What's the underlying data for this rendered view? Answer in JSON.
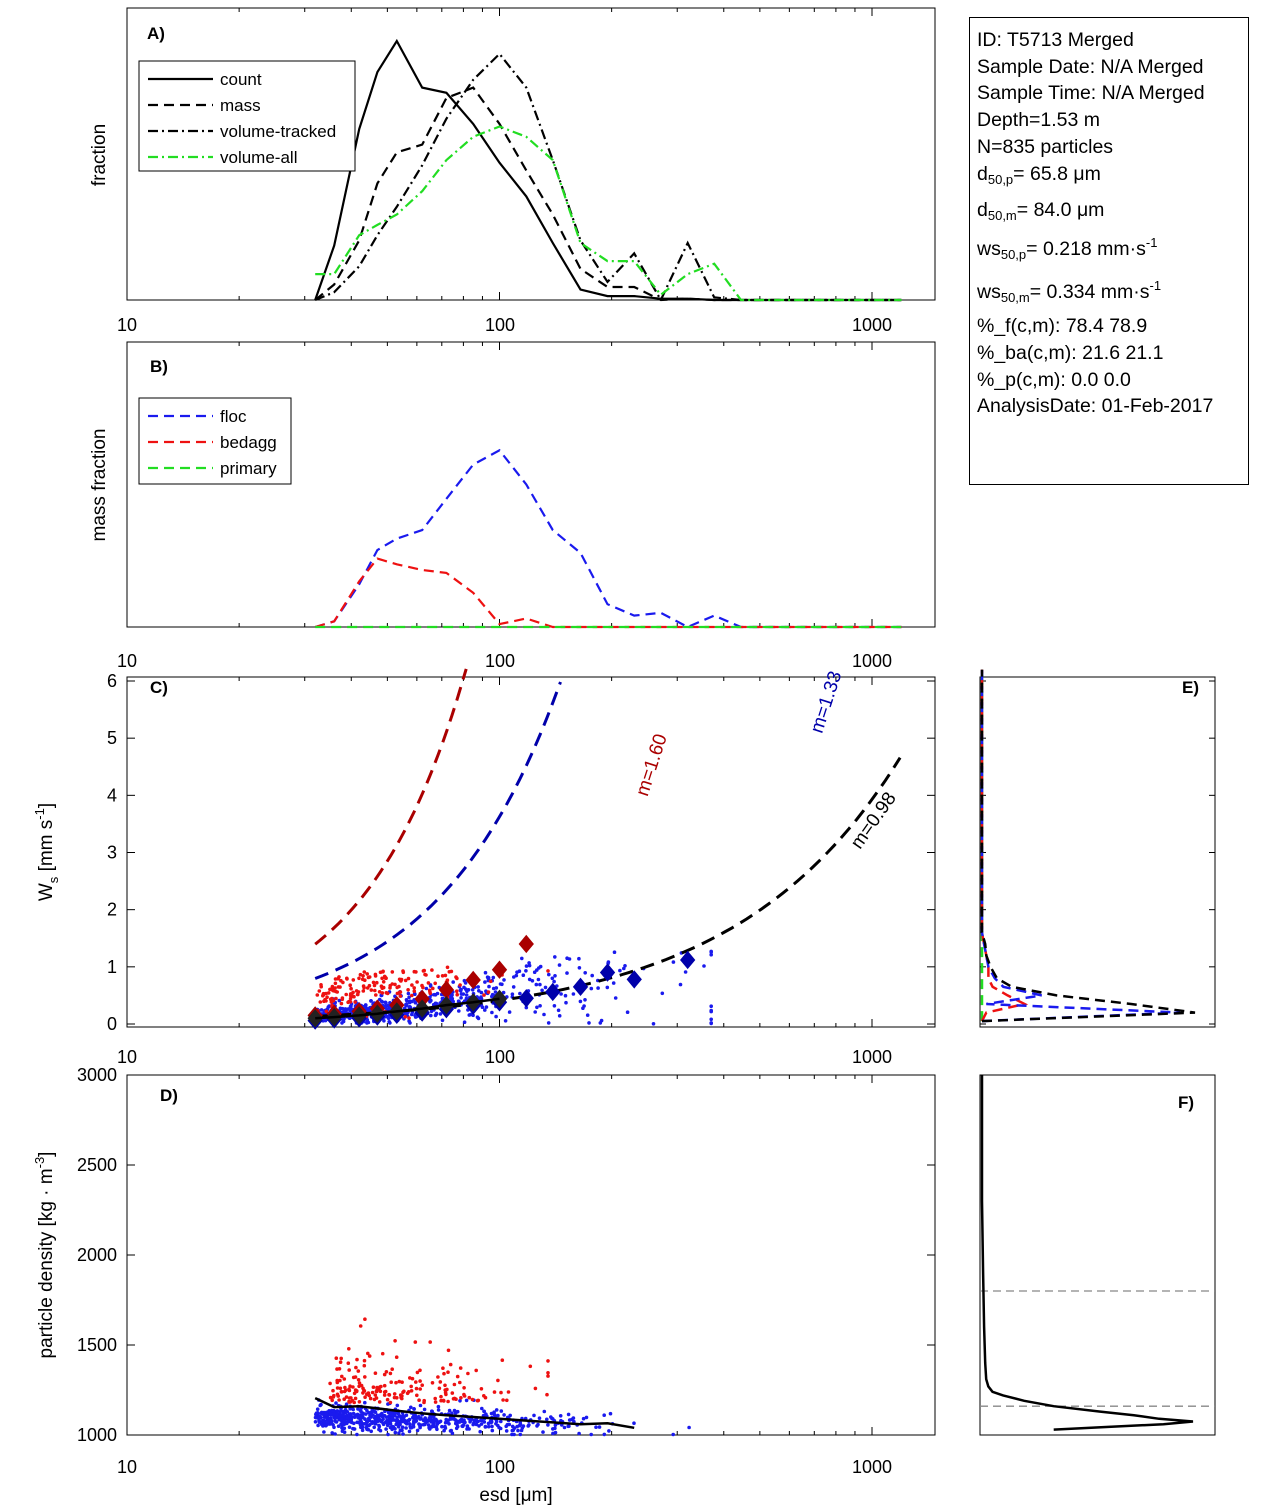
{
  "info_box": {
    "id_line": "ID: T5713 Merged",
    "sample_date": "Sample Date: N/A Merged",
    "sample_time": "Sample Time: N/A Merged",
    "depth": "Depth=1.53 m",
    "n_particles": "N=835 particles",
    "d50p_label": "d",
    "d50p_sub": "50,p",
    "d50p_value": "=  65.8 μm",
    "d50m_label": "d",
    "d50m_sub": "50,m",
    "d50m_value": "=  84.0 μm",
    "ws50p_label": "ws",
    "ws50p_sub": "50,p",
    "ws50p_value": "= 0.218 mm·s",
    "ws50p_sup": "-1",
    "ws50m_label": "ws",
    "ws50m_sub": "50,m",
    "ws50m_value": "= 0.334 mm·s",
    "ws50m_sup": "-1",
    "pct_f": "%_f(c,m): 78.4 78.9",
    "pct_ba": "%_ba(c,m): 21.6 21.1",
    "pct_p": "%_p(c,m): 0.0 0.0",
    "analysis_date": "AnalysisDate: 01-Feb-2017"
  },
  "colors": {
    "count": "#000000",
    "mass": "#000000",
    "volume_tracked": "#000000",
    "volume_all": "#22dd22",
    "floc": "#1a1aee",
    "bedagg": "#ee1111",
    "primary": "#22dd22",
    "fit_bedagg": "#aa0000",
    "fit_floc": "#0000aa",
    "fit_all": "#000000",
    "threshold": "#888888"
  },
  "chart_data": [
    {
      "panel": "A",
      "type": "line",
      "title": "A)",
      "xlabel": "",
      "ylabel": "fraction",
      "xscale": "log",
      "xlim": [
        10,
        1480
      ],
      "xticks": [
        10,
        100,
        1000
      ],
      "xtick_labels": [
        "10",
        "100",
        "1000"
      ],
      "ylim": [
        0,
        1
      ],
      "yticks": [],
      "legend": {
        "placement": "top-left",
        "entries": [
          "count",
          "mass",
          "volume-tracked",
          "volume-all"
        ]
      },
      "x": [
        32,
        36,
        42,
        47,
        53,
        62,
        72,
        85,
        100,
        118,
        139,
        165,
        195,
        230,
        271,
        320,
        377,
        445,
        525,
        620,
        730,
        862,
        1017,
        1200
      ],
      "series": [
        {
          "name": "count",
          "style": "solid",
          "values": [
            0.0,
            0.21,
            0.66,
            0.88,
            1.0,
            0.82,
            0.8,
            0.68,
            0.53,
            0.4,
            0.22,
            0.04,
            0.015,
            0.015,
            0.005,
            0.005,
            0.0,
            0.0,
            0.0,
            0.0,
            0.0,
            0.0,
            0.0,
            0.0
          ]
        },
        {
          "name": "mass",
          "style": "dashed",
          "values": [
            0.0,
            0.06,
            0.23,
            0.45,
            0.57,
            0.6,
            0.78,
            0.82,
            0.68,
            0.5,
            0.33,
            0.12,
            0.05,
            0.05,
            0.0,
            0.005,
            0.0,
            0.0,
            0.0,
            0.0,
            0.0,
            0.0,
            0.0,
            0.0
          ]
        },
        {
          "name": "volume-tracked",
          "style": "dashdot",
          "values": [
            0.0,
            0.03,
            0.13,
            0.25,
            0.36,
            0.52,
            0.7,
            0.85,
            0.95,
            0.82,
            0.54,
            0.23,
            0.07,
            0.18,
            0.0,
            0.22,
            0.01,
            0.0,
            0.0,
            0.0,
            0.0,
            0.0,
            0.0,
            0.0
          ]
        },
        {
          "name": "volume-all",
          "style": "dashdot",
          "values": [
            0.1,
            0.1,
            0.25,
            0.29,
            0.33,
            0.42,
            0.54,
            0.63,
            0.67,
            0.63,
            0.54,
            0.22,
            0.15,
            0.15,
            0.02,
            0.1,
            0.14,
            0.0,
            0.0,
            0.0,
            0.0,
            0.0,
            0.0,
            0.0
          ]
        }
      ]
    },
    {
      "panel": "B",
      "type": "line",
      "title": "B)",
      "xlabel": "",
      "ylabel": "mass fraction",
      "xscale": "log",
      "xlim": [
        10,
        1480
      ],
      "xticks": [
        10,
        100,
        1000
      ],
      "xtick_labels": [
        "10",
        "100",
        "1000"
      ],
      "ylim": [
        0,
        1
      ],
      "yticks": [],
      "legend": {
        "placement": "top-left",
        "entries": [
          "floc",
          "bedagg",
          "primary"
        ]
      },
      "x": [
        32,
        36,
        42,
        47,
        53,
        62,
        72,
        85,
        100,
        118,
        139,
        165,
        195,
        230,
        271,
        320,
        377,
        445,
        525,
        620,
        730,
        862,
        1017,
        1200
      ],
      "series": [
        {
          "name": "floc",
          "style": "dashed",
          "values": [
            0.0,
            0.02,
            0.15,
            0.27,
            0.31,
            0.34,
            0.45,
            0.57,
            0.62,
            0.5,
            0.34,
            0.26,
            0.08,
            0.04,
            0.05,
            0.0,
            0.04,
            0.0,
            0.0,
            0.0,
            0.0,
            0.0,
            0.0,
            0.0
          ]
        },
        {
          "name": "bedagg",
          "style": "dashed",
          "values": [
            0.0,
            0.02,
            0.16,
            0.24,
            0.22,
            0.2,
            0.19,
            0.12,
            0.01,
            0.03,
            0.0,
            0.0,
            0.0,
            0.0,
            0.0,
            0.0,
            0.0,
            0.0,
            0.0,
            0.0,
            0.0,
            0.0,
            0.0,
            0.0
          ]
        },
        {
          "name": "primary",
          "style": "dashed",
          "values": [
            0.0,
            0.0,
            0.0,
            0.0,
            0.0,
            0.0,
            0.0,
            0.0,
            0.0,
            0.0,
            0.0,
            0.0,
            0.0,
            0.0,
            0.0,
            0.0,
            0.0,
            0.0,
            0.0,
            0.0,
            0.0,
            0.0,
            0.0,
            0.0
          ]
        }
      ]
    },
    {
      "panel": "C",
      "type": "scatter",
      "title": "C)",
      "xlabel": "",
      "ylabel": "W_s [mm s^-1]",
      "ylabel_main": "W",
      "ylabel_sub": "s",
      "ylabel_rest": " [mm s",
      "ylabel_sup": "-1",
      "ylabel_end": "]",
      "xscale": "log",
      "xlim": [
        10,
        1480
      ],
      "xticks": [
        10,
        100,
        1000
      ],
      "xtick_labels": [
        "10",
        "100",
        "1000"
      ],
      "ylim": [
        0,
        6.25
      ],
      "yticks": [
        0,
        1,
        2,
        3,
        4,
        5,
        6
      ],
      "ytick_labels": [
        "0",
        "1",
        "2",
        "3",
        "4",
        "5",
        "6"
      ],
      "annotations": [
        {
          "text": "m=1.60",
          "color": "fit_bedagg",
          "x": 265,
          "y": 4.5,
          "angle": -72
        },
        {
          "text": "m=1.33",
          "color": "fit_floc",
          "x": 780,
          "y": 5.6,
          "angle": -72
        },
        {
          "text": "m=0.98",
          "color": "fit_all",
          "x": 1040,
          "y": 3.5,
          "angle": -55
        }
      ],
      "fits": [
        {
          "name": "bedagg-fit",
          "coef": 0.00545,
          "exponent": 1.6,
          "xrange": [
            32,
            330
          ],
          "color": "fit_bedagg"
        },
        {
          "name": "floc-fit",
          "coef": 0.00793,
          "exponent": 1.33,
          "xrange": [
            32,
            930
          ],
          "color": "fit_floc"
        },
        {
          "name": "all-fit",
          "coef": 0.00451,
          "exponent": 0.98,
          "xrange": [
            32,
            1190
          ],
          "color": "fit_all"
        }
      ],
      "binned_means": {
        "bedagg": {
          "x": [
            32,
            36,
            42,
            47,
            53,
            62,
            72,
            85,
            100,
            118
          ],
          "y": [
            0.15,
            0.18,
            0.22,
            0.27,
            0.33,
            0.44,
            0.6,
            0.77,
            0.95,
            1.4
          ]
        },
        "floc": {
          "x": [
            32,
            36,
            42,
            47,
            53,
            62,
            72,
            85,
            100,
            118,
            139,
            165,
            195,
            230,
            320
          ],
          "y": [
            0.06,
            0.08,
            0.1,
            0.13,
            0.16,
            0.2,
            0.26,
            0.32,
            0.38,
            0.45,
            0.56,
            0.65,
            0.9,
            0.78,
            1.12
          ]
        },
        "all": {
          "x": [
            32,
            36,
            42,
            47,
            53,
            62,
            72,
            85,
            100
          ],
          "y": [
            0.1,
            0.12,
            0.15,
            0.18,
            0.22,
            0.27,
            0.33,
            0.38,
            0.44
          ]
        }
      },
      "scatter_summary": {
        "floc_points": "approx 650 points, esd 32-370 um, ws 0-1.3 mm/s",
        "bedagg_points": "approx 180 points, esd 32-135 um, ws 0.1-1.0 mm/s"
      }
    },
    {
      "panel": "D",
      "type": "scatter",
      "title": "D)",
      "xlabel": "esd [μm]",
      "ylabel": "particle density [kg · m^-3]",
      "ylabel_main": "particle density [kg · m",
      "ylabel_sup": "-3",
      "ylabel_end": "]",
      "xscale": "log",
      "xlim": [
        10,
        1480
      ],
      "xticks": [
        10,
        100,
        1000
      ],
      "xtick_labels": [
        "10",
        "100",
        "1000"
      ],
      "ylim": [
        1000,
        3000
      ],
      "yticks": [
        1000,
        1500,
        2000,
        2500,
        3000
      ],
      "ytick_labels": [
        "1000",
        "1500",
        "2000",
        "2500",
        "3000"
      ],
      "mean_line": {
        "x": [
          32,
          36,
          42,
          53,
          62,
          72,
          85,
          100,
          118,
          139,
          165,
          195,
          230
        ],
        "y": [
          1205,
          1155,
          1160,
          1135,
          1120,
          1110,
          1100,
          1090,
          1080,
          1070,
          1060,
          1065,
          1040
        ]
      },
      "scatter_summary": {
        "floc_points": "density 1000-1200 kg/m3, esd 32-370 um",
        "bedagg_points": "density 1100-1650 kg/m3, esd 35-135 um"
      }
    },
    {
      "panel": "E",
      "type": "line",
      "title": "E)",
      "xlabel": "",
      "ylabel": "",
      "ylim": [
        0,
        6.25
      ],
      "xlim": [
        0,
        1
      ],
      "description": "Horizontal distributions of Ws (shares y-axis with panel C)",
      "y": [
        0.05,
        0.2,
        0.35,
        0.5,
        0.65,
        0.8,
        1.0,
        1.2,
        1.4,
        1.6,
        2.0,
        3.0,
        4.0,
        5.0,
        6.2
      ],
      "series": [
        {
          "name": "all",
          "style": "dashed",
          "color": "fit_all",
          "values": [
            0.0,
            1.0,
            0.7,
            0.35,
            0.14,
            0.07,
            0.04,
            0.02,
            0.015,
            0.0,
            0.0,
            0.0,
            0.0,
            0.0,
            0.0
          ]
        },
        {
          "name": "floc",
          "style": "dashed",
          "color": "floc",
          "values": [
            0.0,
            0.93,
            0.02,
            0.28,
            0.1,
            0.06,
            0.03,
            0.02,
            0.01,
            0.0,
            0.0,
            0.0,
            0.0,
            0.0,
            0.0
          ]
        },
        {
          "name": "bedagg",
          "style": "dashed",
          "color": "bedagg",
          "values": [
            0.0,
            0.02,
            0.2,
            0.12,
            0.05,
            0.03,
            0.03,
            0.02,
            0.01,
            0.0,
            0.0,
            0.0,
            0.0,
            0.0,
            0.0
          ]
        },
        {
          "name": "primary",
          "style": "dashed",
          "color": "primary",
          "values": [
            0.0,
            0.0,
            0.0,
            0.0,
            0.0,
            0.0,
            0.0,
            0.0,
            0.0,
            0.0,
            0.0,
            0.0,
            0.0,
            0.0,
            0.0
          ]
        }
      ]
    },
    {
      "panel": "F",
      "type": "line",
      "title": "F)",
      "xlabel": "",
      "ylabel": "",
      "ylim": [
        1000,
        3000
      ],
      "xlim": [
        0,
        1
      ],
      "description": "Density distribution (shares y-axis with panel D)",
      "thresholds": [
        1160,
        1800
      ],
      "y": [
        1030,
        1045,
        1060,
        1075,
        1090,
        1110,
        1130,
        1160,
        1190,
        1220,
        1240,
        1270,
        1310,
        1400,
        1600,
        1900,
        2300,
        2700,
        3000
      ],
      "series": [
        {
          "name": "density",
          "style": "solid",
          "color": "fit_all",
          "values": [
            0.34,
            0.6,
            0.86,
            1.0,
            0.84,
            0.72,
            0.56,
            0.34,
            0.2,
            0.1,
            0.05,
            0.03,
            0.02,
            0.015,
            0.01,
            0.005,
            0.0,
            0.0,
            0.0
          ]
        }
      ]
    }
  ]
}
